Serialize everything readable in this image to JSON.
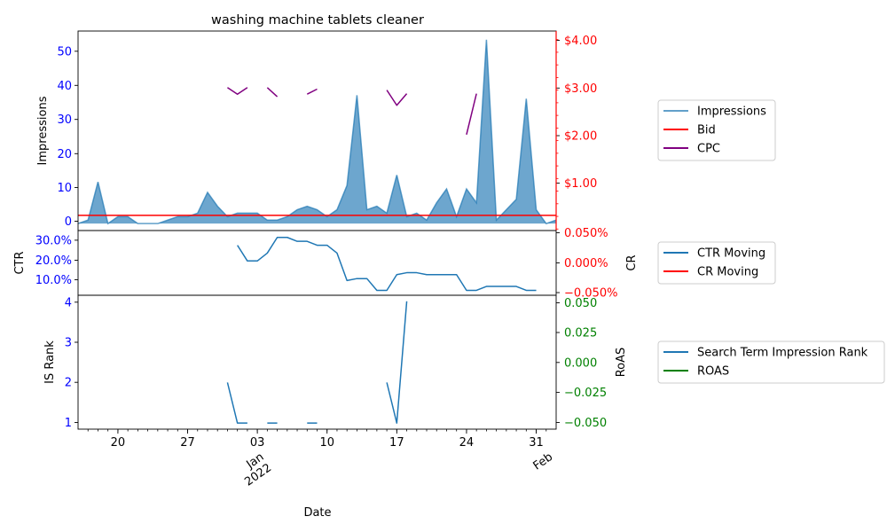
{
  "chart_data": {
    "type": "line",
    "title": "washing machine tablets cleaner",
    "xlabel": "Date",
    "x_ticks": [
      {
        "day": 3,
        "label": "20"
      },
      {
        "day": 10,
        "label": "27"
      },
      {
        "day": 17,
        "label": "Jan\n2022"
      },
      {
        "day": 17,
        "label": "03"
      },
      {
        "day": 24,
        "label": "10"
      },
      {
        "day": 31,
        "label": "17"
      },
      {
        "day": 38,
        "label": "24"
      },
      {
        "day": 45,
        "label": "31"
      },
      {
        "day": 46,
        "label": "Feb"
      }
    ],
    "x_range": [
      -1,
      47
    ],
    "panels": [
      {
        "id": "top",
        "ylabel": "Impressions",
        "y2label": "",
        "ylim": [
          -2,
          55.5
        ],
        "y_ticks": [
          "0",
          "10",
          "20",
          "30",
          "40",
          "50"
        ],
        "y2lim": [
          0.22,
          4.17
        ],
        "y2_ticks": [
          "$1.00",
          "$2.00",
          "$3.00",
          "$4.00"
        ],
        "series": [
          {
            "name": "Impressions",
            "color": "#1f77b4",
            "kind": "area",
            "x": [
              -1,
              0,
              1,
              2,
              3,
              4,
              5,
              6,
              7,
              8,
              9,
              10,
              11,
              12,
              13,
              14,
              15,
              16,
              17,
              18,
              19,
              20,
              21,
              22,
              23,
              24,
              25,
              26,
              27,
              28,
              29,
              30,
              31,
              32,
              33,
              34,
              35,
              36,
              37,
              38,
              39,
              40,
              41,
              42,
              43,
              44,
              45,
              46,
              47
            ],
            "y": [
              0,
              1,
              12,
              0,
              2,
              2,
              0,
              0,
              0,
              1,
              2,
              2,
              3,
              9,
              5,
              2,
              3,
              3,
              3,
              1,
              1,
              2,
              4,
              5,
              4,
              2,
              4,
              11,
              37,
              4,
              5,
              3,
              14,
              2,
              3,
              1,
              6,
              10,
              2,
              10,
              6,
              53,
              1,
              4,
              7,
              36,
              4,
              0,
              1
            ]
          },
          {
            "name": "Bid",
            "color": "#ff0000",
            "kind": "hline",
            "axis": "right",
            "value": 0.52
          },
          {
            "name": "CPC",
            "color": "#800080",
            "kind": "line",
            "axis": "right",
            "segments": [
              {
                "x": [
                  14,
                  15,
                  16
                ],
                "y": [
                  3.05,
                  2.92,
                  3.05
                ]
              },
              {
                "x": [
                  18,
                  19
                ],
                "y": [
                  3.05,
                  2.87
                ]
              },
              {
                "x": [
                  22,
                  23
                ],
                "y": [
                  2.92,
                  3.02
                ]
              },
              {
                "x": [
                  30,
                  31,
                  32
                ],
                "y": [
                  3.0,
                  2.7,
                  2.93
                ]
              },
              {
                "x": [
                  38,
                  39
                ],
                "y": [
                  2.12,
                  2.93
                ]
              }
            ]
          }
        ]
      },
      {
        "id": "middle",
        "ylabel": "CTR",
        "y2label": "CR",
        "ylim": [
          2.5,
          35.5
        ],
        "y_ticks": [
          "10.0%",
          "20.0%",
          "30.0%"
        ],
        "y2lim": [
          -0.055,
          0.055
        ],
        "y2_ticks": [
          "−0.050%",
          "0.000%",
          "0.050%"
        ],
        "series": [
          {
            "name": "CTR Moving",
            "color": "#1f77b4",
            "kind": "line",
            "x": [
              15,
              16,
              17,
              18,
              19,
              20,
              21,
              22,
              23,
              24,
              25,
              26,
              27,
              28,
              29,
              30,
              31,
              32,
              33,
              34,
              35,
              36,
              37,
              38,
              39,
              40,
              41,
              42,
              43,
              44,
              45
            ],
            "y": [
              28,
              20,
              20,
              24,
              32,
              32,
              30,
              30,
              28,
              28,
              24,
              10,
              11,
              11,
              5,
              5,
              13,
              14,
              14,
              13,
              13,
              13,
              13,
              5,
              5,
              7,
              7,
              7,
              7,
              5,
              5
            ]
          },
          {
            "name": "CR Moving",
            "color": "#ff0000",
            "kind": "line",
            "x": [],
            "y": []
          }
        ]
      },
      {
        "id": "bottom",
        "ylabel": "IS Rank",
        "y2label": "RoAS",
        "ylim": [
          0.85,
          4.15
        ],
        "y_ticks": [
          "1",
          "2",
          "3",
          "4"
        ],
        "y2lim": [
          -0.055,
          0.055
        ],
        "y2_ticks": [
          "−0.050",
          "−0.025",
          "0.000",
          "0.025",
          "0.050"
        ],
        "series": [
          {
            "name": "Search Term Impression Rank",
            "color": "#1f77b4",
            "kind": "line",
            "segments": [
              {
                "x": [
                  14,
                  15,
                  16
                ],
                "y": [
                  2,
                  1,
                  1
                ]
              },
              {
                "x": [
                  18,
                  19
                ],
                "y": [
                  1,
                  1
                ]
              },
              {
                "x": [
                  22,
                  23
                ],
                "y": [
                  1,
                  1
                ]
              },
              {
                "x": [
                  30,
                  31,
                  32
                ],
                "y": [
                  2,
                  1,
                  4
                ]
              }
            ]
          },
          {
            "name": "ROAS",
            "color": "#008000",
            "kind": "line",
            "x": [],
            "y": []
          }
        ]
      }
    ]
  }
}
